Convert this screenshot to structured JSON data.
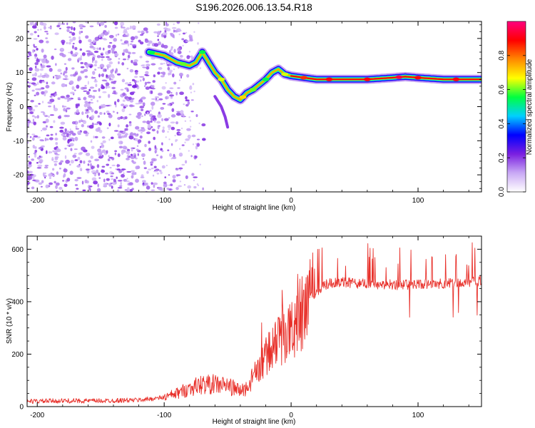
{
  "title": "S196.2026.006.13.54.R18",
  "chart_data": [
    {
      "type": "heatmap",
      "xlabel": "Height of straight line (km)",
      "ylabel": "Frequency (Hz)",
      "xlim": [
        -208,
        150
      ],
      "ylim": [
        -25,
        25
      ],
      "xticks": [
        -200,
        -100,
        0,
        100
      ],
      "yticks": [
        20,
        10,
        0,
        -10,
        -20
      ],
      "xtick_labels": [
        "-200",
        "-100",
        "0",
        "100"
      ],
      "ytick_labels": [
        "20",
        "10",
        "0",
        "-10",
        "-20"
      ],
      "ridge": {
        "x": [
          -112,
          -100,
          -90,
          -80,
          -75,
          -70,
          -65,
          -60,
          -55,
          -50,
          -45,
          -40,
          -35,
          -30,
          -25,
          -20,
          -15,
          -10,
          -5,
          0,
          10,
          20,
          40,
          60,
          80,
          90,
          100,
          120,
          150
        ],
        "freq": [
          16,
          15,
          13,
          12,
          13,
          16,
          13,
          10,
          8,
          5,
          3,
          2,
          4,
          5,
          6.5,
          8,
          10,
          11,
          9.5,
          9,
          8.5,
          8,
          8,
          8,
          8.5,
          8.8,
          8.5,
          8,
          8
        ]
      },
      "colorbar": {
        "label": "Normalized spectral amplitude",
        "range": [
          0,
          1
        ],
        "ticks": [
          0.0,
          0.2,
          0.4,
          0.6,
          0.8
        ],
        "tick_labels": [
          "0.0",
          "0.2",
          "0.4",
          "0.6",
          "0.8"
        ],
        "colors": [
          "#ffffff",
          "#c9a9f5",
          "#7a1fe0",
          "#0000ff",
          "#00d0ff",
          "#00ff40",
          "#ffff00",
          "#ff8800",
          "#ff0000",
          "#ff0080"
        ]
      }
    },
    {
      "type": "line",
      "xlabel": "Height of straight line (km)",
      "ylabel": "SNR (10 * v/v)",
      "xlim": [
        -208,
        150
      ],
      "ylim": [
        0,
        650
      ],
      "xticks": [
        -200,
        -100,
        0,
        100
      ],
      "yticks": [
        0,
        200,
        400,
        600
      ],
      "xtick_labels": [
        "-200",
        "-100",
        "0",
        "100"
      ],
      "ytick_labels": [
        "0",
        "200",
        "400",
        "600"
      ],
      "color": "#e8302a",
      "series": [
        {
          "name": "SNR",
          "x": [
            -208,
            -180,
            -150,
            -120,
            -100,
            -90,
            -80,
            -70,
            -60,
            -50,
            -40,
            -35,
            -30,
            -25,
            -20,
            -15,
            -10,
            -5,
            0,
            5,
            10,
            15,
            20,
            25,
            30,
            40,
            50,
            60,
            80,
            100,
            120,
            140,
            150
          ],
          "values": [
            20,
            22,
            22,
            25,
            35,
            50,
            70,
            85,
            85,
            80,
            60,
            70,
            110,
            150,
            190,
            220,
            250,
            270,
            290,
            320,
            360,
            410,
            440,
            460,
            470,
            475,
            470,
            470,
            465,
            465,
            470,
            475,
            480
          ]
        }
      ]
    }
  ]
}
